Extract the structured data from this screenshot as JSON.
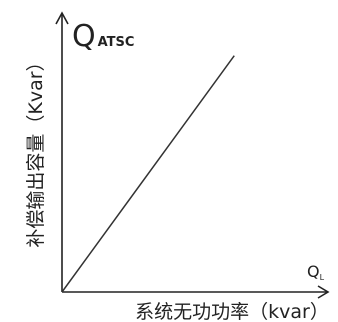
{
  "chart_data": {
    "type": "line",
    "title": "",
    "y_symbol_main": "Q",
    "y_symbol_sub": "ATSC",
    "x_symbol_main": "Q",
    "x_symbol_sub": "L",
    "ylabel": "补偿输出容量（Kvar）",
    "xlabel": "系统无功功率（kvar）",
    "grid": false,
    "legend": "none",
    "xlim": [
      0,
      1
    ],
    "ylim": [
      0,
      1
    ],
    "series": [
      {
        "x": [
          0,
          0.65
        ],
        "y": [
          0,
          0.85
        ]
      }
    ],
    "colors": {
      "axis": "#222222",
      "line": "#333333"
    }
  }
}
